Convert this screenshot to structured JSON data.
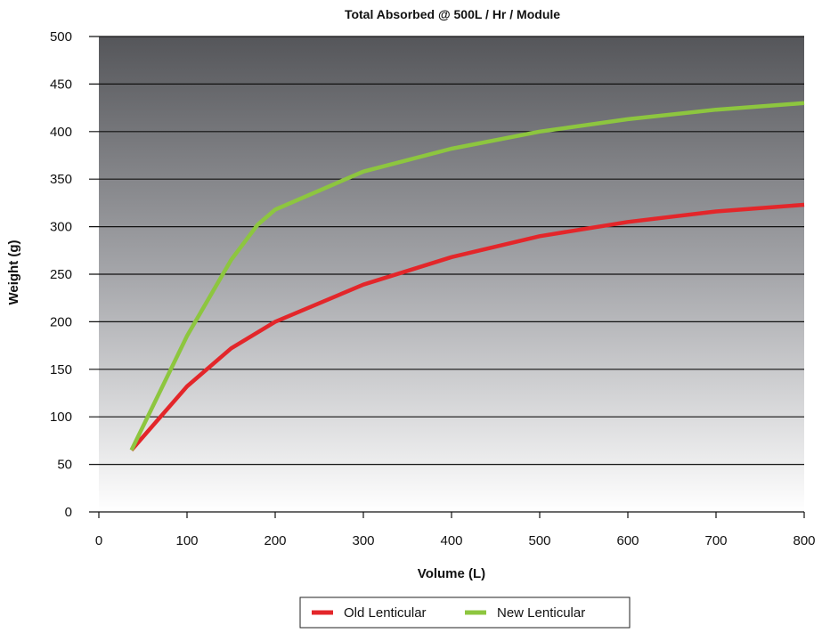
{
  "chart_data": {
    "type": "line",
    "title": "Total Absorbed @ 500L / Hr / Module",
    "xlabel": "Volume (L)",
    "ylabel": "Weight (g)",
    "xlim": [
      0,
      800
    ],
    "ylim": [
      0,
      500
    ],
    "x_ticks": [
      "0",
      "100",
      "200",
      "300",
      "400",
      "500",
      "600",
      "700",
      "800"
    ],
    "y_ticks": [
      "0",
      "50",
      "100",
      "150",
      "200",
      "250",
      "300",
      "350",
      "400",
      "450",
      "500"
    ],
    "grid": "horizontal",
    "legend_position": "bottom-center",
    "background": "vertical gradient dark gray to white",
    "series": [
      {
        "name": "Old Lenticular",
        "color": "#e3262a",
        "points": [
          [
            37,
            65
          ],
          [
            100,
            132
          ],
          [
            150,
            172
          ],
          [
            200,
            200
          ],
          [
            300,
            239
          ],
          [
            400,
            268
          ],
          [
            500,
            290
          ],
          [
            600,
            305
          ],
          [
            700,
            316
          ],
          [
            800,
            323
          ]
        ]
      },
      {
        "name": "New Lenticular",
        "color": "#8dc63f",
        "points": [
          [
            37,
            65
          ],
          [
            100,
            185
          ],
          [
            150,
            265
          ],
          [
            180,
            302
          ],
          [
            200,
            318
          ],
          [
            300,
            358
          ],
          [
            400,
            382
          ],
          [
            500,
            400
          ],
          [
            600,
            413
          ],
          [
            700,
            423
          ],
          [
            800,
            430
          ]
        ]
      }
    ]
  }
}
